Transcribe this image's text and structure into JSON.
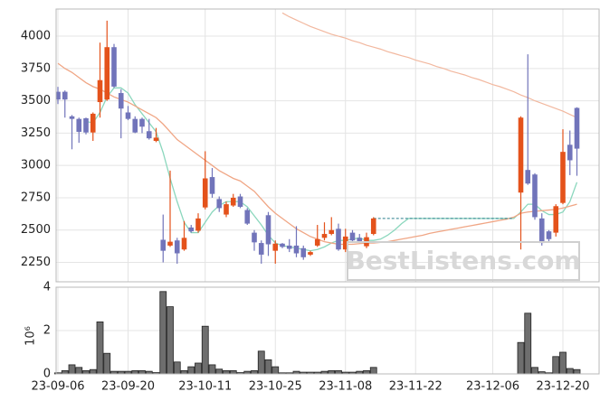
{
  "chart_data": [
    {
      "type": "candlestick",
      "up_color": "#e4521b",
      "down_color": "#7174ba",
      "ylim": [
        2100,
        4210
      ],
      "yticks": [
        2250,
        2500,
        2750,
        3000,
        3250,
        3500,
        3750,
        4000
      ],
      "grid": true,
      "watermark": "BestListens.com",
      "open": [
        3570,
        3570,
        3380,
        3360,
        3365,
        3255,
        3490,
        3510,
        3915,
        3560,
        3410,
        3360,
        3360,
        3265,
        3190,
        2425,
        2380,
        2420,
        2350,
        2520,
        2495,
        2675,
        2910,
        2740,
        2620,
        2690,
        2760,
        2655,
        2480,
        2400,
        2615,
        2340,
        2395,
        2380,
        2380,
        2360,
        2310,
        2380,
        2440,
        2470,
        2510,
        2350,
        2480,
        2440,
        2375,
        2470,
        null,
        null,
        null,
        null,
        null,
        null,
        null,
        null,
        null,
        null,
        null,
        null,
        null,
        null,
        null,
        null,
        null,
        null,
        null,
        null,
        2790,
        2965,
        2930,
        2590,
        2490,
        2480,
        2710,
        3160,
        3445
      ],
      "high": [
        3608,
        3580,
        3390,
        3370,
        3370,
        3410,
        3950,
        4120,
        3940,
        3590,
        3460,
        3380,
        3370,
        3360,
        3290,
        2620,
        2960,
        2440,
        2570,
        2540,
        2630,
        3110,
        2980,
        2760,
        2720,
        2780,
        2780,
        2670,
        2500,
        2420,
        2640,
        2420,
        2400,
        2430,
        2530,
        2380,
        2340,
        2540,
        2560,
        2600,
        2550,
        2510,
        2500,
        2470,
        2480,
        2600,
        null,
        null,
        null,
        null,
        null,
        null,
        null,
        null,
        null,
        null,
        null,
        null,
        null,
        null,
        null,
        null,
        null,
        null,
        null,
        null,
        3380,
        3860,
        2940,
        2630,
        2500,
        2700,
        3280,
        3270,
        3450
      ],
      "low": [
        3475,
        3370,
        3125,
        3175,
        3240,
        3190,
        3370,
        3500,
        3600,
        3210,
        3350,
        3250,
        3250,
        3200,
        3180,
        2250,
        2370,
        2240,
        2340,
        2480,
        2480,
        2660,
        2750,
        2640,
        2600,
        2680,
        2670,
        2540,
        2340,
        2240,
        2300,
        2240,
        2360,
        2330,
        2290,
        2270,
        2300,
        2370,
        2420,
        2460,
        2340,
        2330,
        2400,
        2400,
        2360,
        2460,
        null,
        null,
        null,
        null,
        null,
        null,
        null,
        null,
        null,
        null,
        null,
        null,
        null,
        null,
        null,
        null,
        null,
        null,
        null,
        null,
        2350,
        2850,
        2580,
        2380,
        2410,
        2450,
        2700,
        2925,
        2920
      ],
      "close": [
        3510,
        3510,
        3360,
        3260,
        3255,
        3400,
        3660,
        3915,
        3610,
        3440,
        3360,
        3255,
        3300,
        3210,
        3215,
        2340,
        2410,
        2320,
        2440,
        2490,
        2590,
        2900,
        2780,
        2670,
        2700,
        2750,
        2680,
        2550,
        2405,
        2310,
        2390,
        2395,
        2370,
        2355,
        2320,
        2290,
        2330,
        2430,
        2470,
        2500,
        2350,
        2450,
        2420,
        2410,
        2445,
        2590,
        null,
        null,
        null,
        null,
        null,
        null,
        null,
        null,
        null,
        null,
        null,
        null,
        null,
        null,
        null,
        null,
        null,
        null,
        null,
        null,
        3370,
        2860,
        2600,
        2400,
        2430,
        2685,
        3105,
        3040,
        3130
      ],
      "lines": [
        {
          "color": "#8bd7bd",
          "width": 1.3,
          "values": [
            null,
            null,
            null,
            null,
            3340,
            3330,
            3410,
            3530,
            3600,
            3600,
            3560,
            3470,
            3400,
            3330,
            3260,
            3100,
            2900,
            2720,
            2560,
            2480,
            2480,
            2560,
            2640,
            2690,
            2720,
            2720,
            2720,
            2680,
            2610,
            2540,
            2460,
            2400,
            2380,
            2370,
            2360,
            2350,
            2340,
            2350,
            2370,
            2400,
            2420,
            2420,
            2430,
            2440,
            2420,
            2420,
            2430,
            2460,
            2500,
            2550,
            2590,
            2590,
            2590,
            2590,
            2590,
            2590,
            2590,
            2590,
            2590,
            2590,
            2590,
            2590,
            2590,
            2590,
            2590,
            2590,
            2640,
            2700,
            2700,
            2650,
            2620,
            2620,
            2640,
            2720,
            2870
          ]
        },
        {
          "color": "#f0a685",
          "width": 1.3,
          "values": [
            3790,
            3750,
            3720,
            3680,
            3640,
            3610,
            3590,
            3560,
            3530,
            3510,
            3490,
            3460,
            3430,
            3400,
            3370,
            3320,
            3260,
            3200,
            3160,
            3120,
            3080,
            3040,
            3000,
            2960,
            2930,
            2900,
            2880,
            2840,
            2800,
            2740,
            2680,
            2630,
            2590,
            2550,
            2510,
            2480,
            2450,
            2430,
            2410,
            2400,
            2390,
            2390,
            2390,
            2395,
            2400,
            2400,
            2405,
            2410,
            2420,
            2430,
            2440,
            2450,
            2460,
            2475,
            2485,
            2495,
            2505,
            2515,
            2525,
            2535,
            2545,
            2555,
            2565,
            2575,
            2585,
            2600,
            2630,
            2640,
            2645,
            2650,
            2655,
            2660,
            2670,
            2685,
            2700
          ]
        },
        {
          "color": "#f2b89f",
          "width": 1.2,
          "values": [
            null,
            null,
            null,
            null,
            null,
            null,
            null,
            null,
            null,
            null,
            null,
            null,
            null,
            null,
            null,
            null,
            null,
            null,
            null,
            null,
            null,
            null,
            null,
            null,
            null,
            null,
            null,
            null,
            null,
            null,
            null,
            null,
            4180,
            4150,
            4125,
            4100,
            4075,
            4055,
            4035,
            4015,
            4000,
            3985,
            3965,
            3950,
            3930,
            3915,
            3900,
            3880,
            3865,
            3849,
            3835,
            3815,
            3800,
            3785,
            3765,
            3750,
            3730,
            3715,
            3700,
            3680,
            3665,
            3645,
            3625,
            3610,
            3590,
            3570,
            3545,
            3525,
            3500,
            3480,
            3460,
            3440,
            3420,
            3395,
            3370
          ]
        },
        {
          "color": "#2b7f8e",
          "width": 1,
          "dashed": true,
          "values": [
            null,
            null,
            null,
            null,
            null,
            null,
            null,
            null,
            null,
            null,
            null,
            null,
            null,
            null,
            null,
            null,
            null,
            null,
            null,
            null,
            null,
            null,
            null,
            null,
            null,
            null,
            null,
            null,
            null,
            null,
            null,
            null,
            null,
            null,
            null,
            null,
            null,
            null,
            null,
            null,
            null,
            null,
            null,
            null,
            null,
            2590,
            2590,
            2590,
            2590,
            2590,
            2590,
            2590,
            2590,
            2590,
            2590,
            2590,
            2590,
            2590,
            2590,
            2590,
            2590,
            2590,
            2590,
            2590,
            2590,
            2590,
            null,
            null,
            null,
            null,
            null,
            null,
            null,
            null,
            null
          ]
        }
      ]
    },
    {
      "type": "bar",
      "color": "#6e6e6e",
      "y_multiplier": "10⁶",
      "ylim": [
        0,
        4
      ],
      "yticks": [
        0,
        2,
        4
      ],
      "grid": true,
      "categories": [
        "23-09-06",
        null,
        null,
        null,
        null,
        null,
        null,
        null,
        null,
        null,
        "23-09-20",
        null,
        null,
        null,
        null,
        null,
        null,
        null,
        null,
        null,
        null,
        "23-10-11",
        null,
        null,
        null,
        null,
        null,
        null,
        null,
        null,
        null,
        "23-10-25",
        null,
        null,
        null,
        null,
        null,
        null,
        null,
        null,
        null,
        "23-11-08",
        null,
        null,
        null,
        null,
        null,
        null,
        null,
        null,
        null,
        "23-11-22",
        null,
        null,
        null,
        null,
        null,
        null,
        null,
        null,
        null,
        null,
        "23-12-06",
        null,
        null,
        null,
        null,
        null,
        null,
        null,
        null,
        null,
        "23-12-20",
        null,
        null
      ],
      "values": [
        0.05,
        0.15,
        0.42,
        0.3,
        0.15,
        0.2,
        2.4,
        0.95,
        0.12,
        0.12,
        0.12,
        0.15,
        0.15,
        0.12,
        0.06,
        3.8,
        3.1,
        0.55,
        0.15,
        0.33,
        0.5,
        2.2,
        0.42,
        0.22,
        0.15,
        0.15,
        0.06,
        0.12,
        0.15,
        1.05,
        0.65,
        0.33,
        0.05,
        0.05,
        0.12,
        0.08,
        0.08,
        0.08,
        0.12,
        0.15,
        0.15,
        0.08,
        0.08,
        0.12,
        0.15,
        0.3,
        null,
        null,
        null,
        null,
        null,
        null,
        null,
        null,
        null,
        null,
        null,
        null,
        null,
        null,
        null,
        null,
        null,
        null,
        null,
        null,
        1.45,
        2.8,
        0.3,
        0.1,
        0.05,
        0.8,
        1.0,
        0.25,
        0.2
      ]
    }
  ]
}
